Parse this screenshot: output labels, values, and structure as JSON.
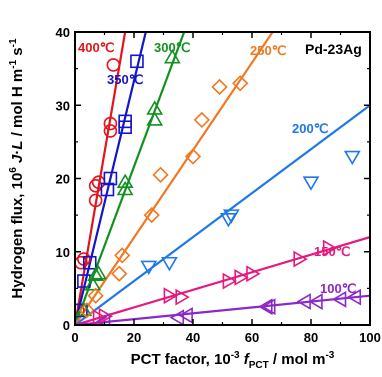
{
  "chart_data": {
    "type": "scatter",
    "xlabel": "PCT factor, 10⁻³ f_PCT / mol m⁻³",
    "xlabel_parts": [
      "PCT factor, 10",
      "-3",
      " f",
      "PCT",
      " / mol m",
      "-3"
    ],
    "ylabel": "Hydrogen flux, 10⁶ J·L / mol H m⁻¹ s⁻¹",
    "ylabel_parts": [
      "Hydrogen flux, 10",
      "6",
      " J",
      "·",
      "L",
      " / mol H m",
      "-1",
      " s",
      "-1"
    ],
    "xlim": [
      0,
      100
    ],
    "ylim": [
      0,
      40
    ],
    "xticks": [
      0,
      20,
      40,
      60,
      80,
      100
    ],
    "yticks": [
      0,
      10,
      20,
      30,
      40
    ],
    "annotation": "Pd-23Ag",
    "series": [
      {
        "name": "400℃",
        "color": "#e3141c",
        "marker": "circle",
        "points": [
          [
            1,
            2
          ],
          [
            2,
            8.5
          ],
          [
            3,
            9
          ],
          [
            7,
            17
          ],
          [
            7,
            19
          ],
          [
            8,
            19.5
          ],
          [
            12,
            26.5
          ],
          [
            12,
            27.5
          ],
          [
            13,
            35.5
          ]
        ],
        "fit": [
          [
            0,
            0
          ],
          [
            17,
            40
          ]
        ]
      },
      {
        "name": "350℃",
        "color": "#1414c8",
        "marker": "square",
        "points": [
          [
            2,
            2
          ],
          [
            3,
            6
          ],
          [
            5,
            8.5
          ],
          [
            11,
            18.5
          ],
          [
            12,
            20
          ],
          [
            17,
            27
          ],
          [
            17,
            27.8
          ],
          [
            21,
            36
          ]
        ],
        "fit": [
          [
            0,
            0
          ],
          [
            24,
            40
          ]
        ]
      },
      {
        "name": "300℃",
        "color": "#13911f",
        "marker": "triangle-up",
        "points": [
          [
            3,
            2
          ],
          [
            6,
            5.5
          ],
          [
            7,
            6.8
          ],
          [
            8,
            7
          ],
          [
            17,
            18.5
          ],
          [
            17,
            19.5
          ],
          [
            27,
            28
          ],
          [
            27,
            29.5
          ],
          [
            33,
            36.5
          ]
        ],
        "fit": [
          [
            0,
            0
          ],
          [
            37,
            40
          ]
        ]
      },
      {
        "name": "250℃",
        "color": "#f07820",
        "marker": "diamond",
        "points": [
          [
            4,
            2
          ],
          [
            7,
            4
          ],
          [
            15,
            7
          ],
          [
            16,
            9.5
          ],
          [
            26,
            15
          ],
          [
            29,
            20.5
          ],
          [
            40,
            23
          ],
          [
            43,
            28
          ],
          [
            49,
            32.5
          ],
          [
            56,
            33
          ]
        ],
        "fit": [
          [
            0,
            0
          ],
          [
            67,
            40
          ]
        ]
      },
      {
        "name": "200℃",
        "color": "#1e78e6",
        "marker": "triangle-down",
        "points": [
          [
            25,
            8
          ],
          [
            32,
            8.5
          ],
          [
            52,
            14.5
          ],
          [
            53,
            15
          ],
          [
            80,
            19.5
          ],
          [
            94,
            23
          ]
        ],
        "fit": [
          [
            0,
            0
          ],
          [
            100,
            30
          ]
        ]
      },
      {
        "name": "150℃",
        "color": "#e6197d",
        "marker": "triangle-right",
        "points": [
          [
            8,
            1
          ],
          [
            10,
            1.2
          ],
          [
            32,
            4
          ],
          [
            36,
            3.8
          ],
          [
            52,
            6
          ],
          [
            56,
            6.5
          ],
          [
            60,
            7
          ],
          [
            76,
            9
          ],
          [
            86,
            10.5
          ]
        ],
        "fit": [
          [
            0,
            0
          ],
          [
            100,
            12
          ]
        ]
      },
      {
        "name": "100℃",
        "color": "#8c28c8",
        "marker": "triangle-left",
        "points": [
          [
            10,
            0.5
          ],
          [
            35,
            1
          ],
          [
            38,
            1.3
          ],
          [
            65,
            2.5
          ],
          [
            66,
            2.5
          ],
          [
            78,
            3.2
          ],
          [
            82,
            3.2
          ],
          [
            90,
            3.5
          ],
          [
            95,
            3.8
          ]
        ],
        "fit": [
          [
            0,
            0
          ],
          [
            100,
            4
          ]
        ]
      }
    ]
  }
}
